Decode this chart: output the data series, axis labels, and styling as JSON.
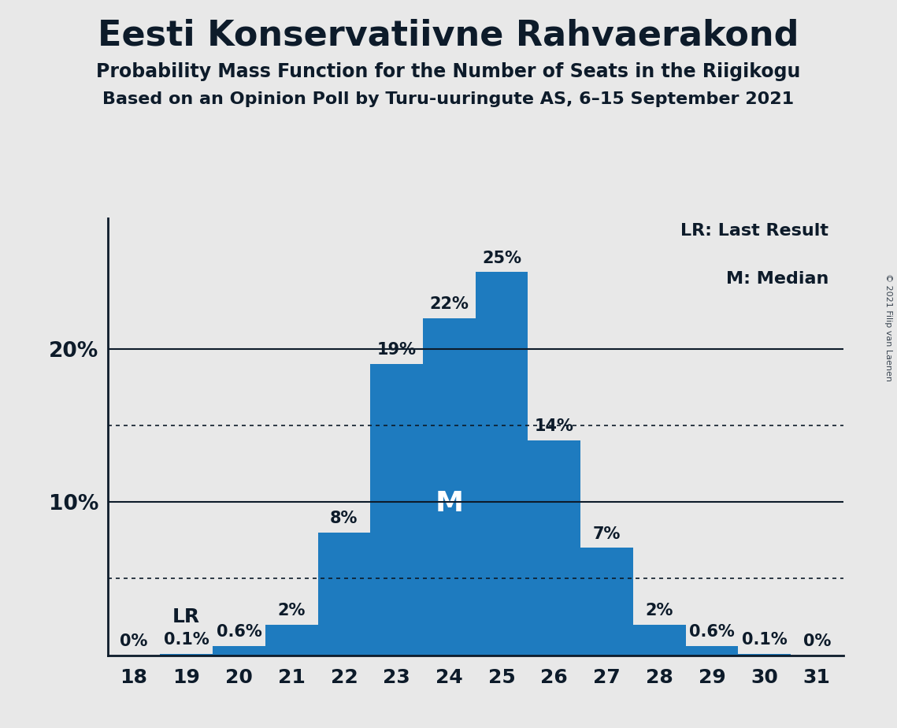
{
  "title": "Eesti Konservatiivne Rahvaerakond",
  "subtitle1": "Probability Mass Function for the Number of Seats in the Riigikogu",
  "subtitle2": "Based on an Opinion Poll by Turu-uuringute AS, 6–15 September 2021",
  "copyright": "© 2021 Filip van Laenen",
  "seats": [
    18,
    19,
    20,
    21,
    22,
    23,
    24,
    25,
    26,
    27,
    28,
    29,
    30,
    31
  ],
  "probabilities": [
    0.0,
    0.001,
    0.006,
    0.02,
    0.08,
    0.19,
    0.22,
    0.25,
    0.14,
    0.07,
    0.02,
    0.006,
    0.001,
    0.0
  ],
  "prob_labels": [
    "0%",
    "0.1%",
    "0.6%",
    "2%",
    "8%",
    "19%",
    "22%",
    "25%",
    "14%",
    "7%",
    "2%",
    "0.6%",
    "0.1%",
    "0%"
  ],
  "bar_color": "#1e7bbf",
  "background_color": "#e8e8e8",
  "text_color": "#0d1b2a",
  "lr_seat": 19,
  "median_seat": 24,
  "yticks": [
    0.1,
    0.2
  ],
  "ytick_labels": [
    "10%",
    "20%"
  ],
  "dotted_lines": [
    0.05,
    0.15
  ],
  "solid_lines": [
    0.1,
    0.2
  ],
  "legend_lr": "LR: Last Result",
  "legend_m": "M: Median",
  "ylim": [
    0,
    0.285
  ],
  "label_offsets": [
    0.003,
    0.003,
    0.003,
    0.003,
    0.003,
    0.003,
    0.003,
    0.003,
    0.003,
    0.003,
    0.003,
    0.003,
    0.003,
    0.003
  ]
}
